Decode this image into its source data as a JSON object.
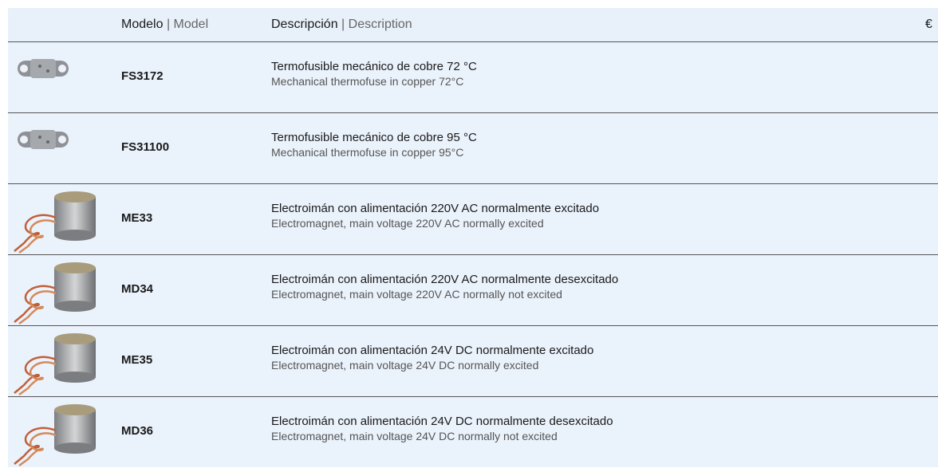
{
  "header": {
    "model_es": "Modelo",
    "model_en": "| Model",
    "description_es": "Descripción",
    "description_en": "| Description",
    "price": "€"
  },
  "rows": [
    {
      "model": "FS3172",
      "description_es": "Termofusible mecánico de cobre 72 °C",
      "description_en": "Mechanical thermofuse in copper 72°C"
    },
    {
      "model": "FS31100",
      "description_es": "Termofusible mecánico de cobre 95 °C",
      "description_en": "Mechanical thermofuse in copper 95°C"
    },
    {
      "model": "ME33",
      "description_es": "Electroimán con alimentación 220V AC normalmente excitado",
      "description_en": "Electromagnet, main voltage 220V AC normally excited"
    },
    {
      "model": "MD34",
      "description_es": "Electroimán con alimentación 220V AC normalmente desexcitado",
      "description_en": "Electromagnet, main voltage 220V AC normally not excited"
    },
    {
      "model": "ME35",
      "description_es": "Electroimán con alimentación 24V DC normalmente excitado",
      "description_en": "Electromagnet, main voltage 24V DC normally excited"
    },
    {
      "model": "MD36",
      "description_es": "Electroimán con alimentación 24V DC normalmente desexcitado",
      "description_en": "Electromagnet, main voltage 24V DC normally not excited"
    }
  ]
}
